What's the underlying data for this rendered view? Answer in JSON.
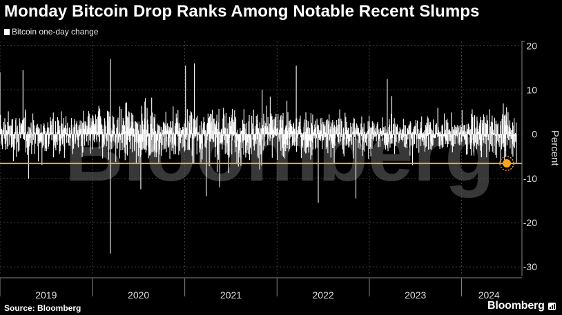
{
  "header": {
    "title": "Monday Bitcoin Drop Ranks Among Notable Recent Slumps"
  },
  "legend": {
    "label": "Bitcoin one-day change"
  },
  "footer": {
    "source": "Source: Bloomberg",
    "brand": "Bloomberg"
  },
  "watermark": "Bloomberg",
  "colors": {
    "background": "#000000",
    "bars": "#ffffff",
    "reference_line": "#f5a623",
    "grid": "#555555"
  },
  "chart_data": {
    "type": "bar",
    "title": "Monday Bitcoin Drop Ranks Among Notable Recent Slumps",
    "ylabel": "Percent",
    "ylim": [
      -32,
      21
    ],
    "y_ticks": [
      20,
      10,
      0,
      -10,
      -20,
      -30
    ],
    "x_range": [
      "2019-01-01",
      "2024-08-05"
    ],
    "x_tick_labels": [
      "2019",
      "2020",
      "2021",
      "2022",
      "2023",
      "2024"
    ],
    "reference_line": {
      "value": -6.6,
      "label_position": "right"
    },
    "highlight_point": {
      "date": "2024-08-05",
      "value": -6.6
    },
    "notable_values": [
      {
        "date": "2020-03-12",
        "value": -27.0
      },
      {
        "date": "2020-03-13",
        "value": 17.0
      },
      {
        "date": "2022-06-13",
        "value": -15.5
      },
      {
        "date": "2022-11-09",
        "value": -14.5
      },
      {
        "date": "2019-01-01",
        "value": 14.0
      },
      {
        "date": "2019-04-02",
        "value": 14.5
      },
      {
        "date": "2021-01-04",
        "value": 15.5
      },
      {
        "date": "2021-02-08",
        "value": 16.0
      },
      {
        "date": "2021-05-19",
        "value": -12.0
      },
      {
        "date": "2022-03-18",
        "value": 15.5
      },
      {
        "date": "2023-03-13",
        "value": 12.5
      },
      {
        "date": "2023-06-21",
        "value": -7.0
      }
    ],
    "series": [
      {
        "name": "Bitcoin one-day change",
        "note": "daily percent change, approx. ±5 typical range"
      }
    ],
    "grid": true,
    "legend_position": "top-left"
  }
}
